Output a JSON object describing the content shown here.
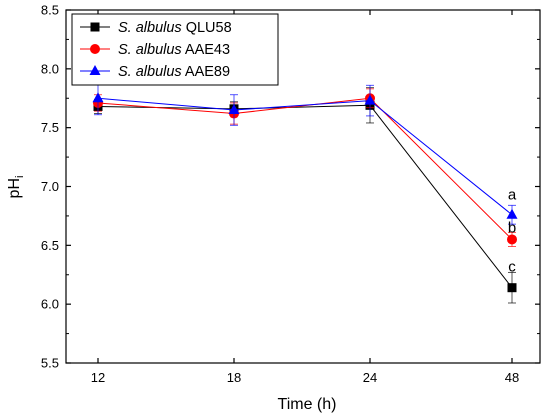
{
  "chart_data": {
    "type": "line",
    "xlabel": "Time (h)",
    "ylabel": "pH",
    "ylabel_sub": "i",
    "categories": [
      "12",
      "18",
      "24",
      "48"
    ],
    "ylim": [
      5.5,
      8.5
    ],
    "yticks": [
      "5.5",
      "6.0",
      "6.5",
      "7.0",
      "7.5",
      "8.0",
      "8.5"
    ],
    "grid": false,
    "legend_position": "top-left",
    "series": [
      {
        "name_italic": "S. albulus",
        "name_rest": " QLU58",
        "color": "#000000",
        "marker": "square",
        "values": [
          7.68,
          7.66,
          7.69,
          6.14
        ],
        "errors": [
          0.06,
          0.06,
          0.15,
          0.13
        ]
      },
      {
        "name_italic": "S. albulus",
        "name_rest": " AAE43",
        "color": "#ff0000",
        "marker": "circle",
        "values": [
          7.71,
          7.62,
          7.75,
          6.55
        ],
        "errors": [
          0.07,
          0.09,
          0.08,
          0.06
        ]
      },
      {
        "name_italic": "S. albulus",
        "name_rest": " AAE89",
        "color": "#0000ff",
        "marker": "triangle",
        "values": [
          7.75,
          7.65,
          7.73,
          6.76
        ],
        "errors": [
          0.14,
          0.13,
          0.13,
          0.08
        ]
      }
    ],
    "annotations": [
      {
        "text": "a",
        "x": "48",
        "y": 6.93
      },
      {
        "text": "b",
        "x": "48",
        "y": 6.65
      },
      {
        "text": "c",
        "x": "48",
        "y": 6.32
      }
    ]
  }
}
